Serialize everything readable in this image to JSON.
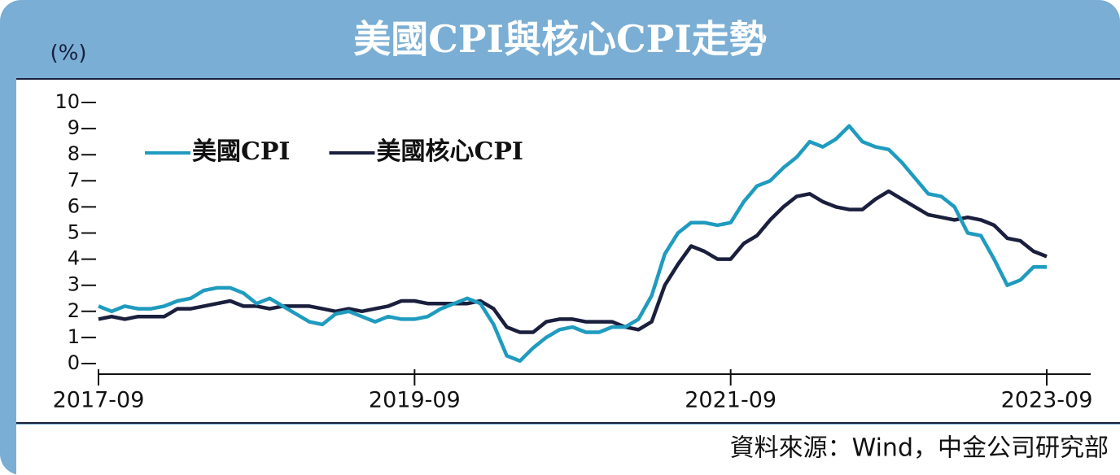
{
  "chart_data": {
    "type": "line",
    "title": "美國CPI與核心CPI走勢",
    "y_label": "(%)",
    "source": "資料來源：Wind，中金公司研究部",
    "categories": [
      "2017-09",
      null,
      null,
      null,
      null,
      null,
      null,
      null,
      null,
      null,
      null,
      null,
      null,
      null,
      null,
      null,
      null,
      null,
      null,
      null,
      null,
      null,
      null,
      null,
      "2019-09",
      null,
      null,
      null,
      null,
      null,
      null,
      null,
      null,
      null,
      null,
      null,
      null,
      null,
      null,
      null,
      null,
      null,
      null,
      null,
      null,
      null,
      null,
      null,
      "2021-09",
      null,
      null,
      null,
      null,
      null,
      null,
      null,
      null,
      null,
      null,
      null,
      null,
      null,
      null,
      null,
      null,
      null,
      null,
      null,
      null,
      null,
      null,
      null,
      "2023-09"
    ],
    "series": [
      {
        "name": "美國CPI",
        "color": "#1f9bbf",
        "values": [
          2.2,
          2.0,
          2.2,
          2.1,
          2.1,
          2.2,
          2.4,
          2.5,
          2.8,
          2.9,
          2.9,
          2.7,
          2.3,
          2.5,
          2.2,
          1.9,
          1.6,
          1.5,
          1.9,
          2.0,
          1.8,
          1.6,
          1.8,
          1.7,
          1.7,
          1.8,
          2.1,
          2.3,
          2.5,
          2.3,
          1.5,
          0.3,
          0.1,
          0.6,
          1.0,
          1.3,
          1.4,
          1.2,
          1.2,
          1.4,
          1.4,
          1.7,
          2.6,
          4.2,
          5.0,
          5.4,
          5.4,
          5.3,
          5.4,
          6.2,
          6.8,
          7.0,
          7.5,
          7.9,
          8.5,
          8.3,
          8.6,
          9.1,
          8.5,
          8.3,
          8.2,
          7.7,
          7.1,
          6.5,
          6.4,
          6.0,
          5.0,
          4.9,
          4.0,
          3.0,
          3.2,
          3.7,
          3.7
        ]
      },
      {
        "name": "美國核心CPI",
        "color": "#1a1f3d",
        "values": [
          1.7,
          1.8,
          1.7,
          1.8,
          1.8,
          1.8,
          2.1,
          2.1,
          2.2,
          2.3,
          2.4,
          2.2,
          2.2,
          2.1,
          2.2,
          2.2,
          2.2,
          2.1,
          2.0,
          2.1,
          2.0,
          2.1,
          2.2,
          2.4,
          2.4,
          2.3,
          2.3,
          2.3,
          2.3,
          2.4,
          2.1,
          1.4,
          1.2,
          1.2,
          1.6,
          1.7,
          1.7,
          1.6,
          1.6,
          1.6,
          1.4,
          1.3,
          1.6,
          3.0,
          3.8,
          4.5,
          4.3,
          4.0,
          4.0,
          4.6,
          4.9,
          5.5,
          6.0,
          6.4,
          6.5,
          6.2,
          6.0,
          5.9,
          5.9,
          6.3,
          6.6,
          6.3,
          6.0,
          5.7,
          5.6,
          5.5,
          5.6,
          5.5,
          5.3,
          4.8,
          4.7,
          4.3,
          4.1
        ]
      }
    ],
    "ylim": [
      0,
      10
    ],
    "yticks": [
      0,
      1,
      2,
      3,
      4,
      5,
      6,
      7,
      8,
      9,
      10
    ],
    "grid": false,
    "legend": "upper left"
  }
}
